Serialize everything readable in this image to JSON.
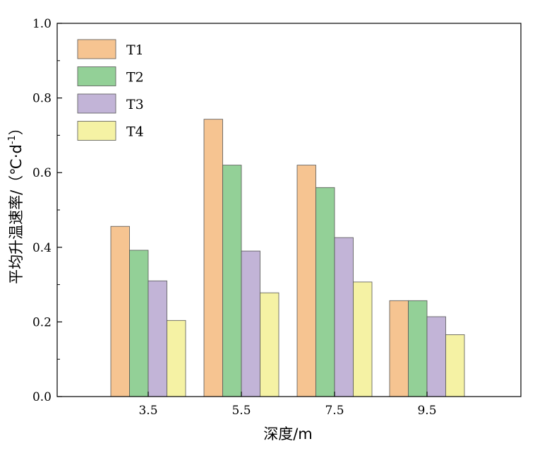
{
  "chart_data": {
    "type": "bar",
    "title": "",
    "xlabel": "深度/m",
    "ylabel": "平均升温速率/（℃·d",
    "ylabel_sup": "-1",
    "ylabel_end": "）",
    "categories": [
      "3.5",
      "5.5",
      "7.5",
      "9.5"
    ],
    "ylim": [
      0,
      1.0
    ],
    "yticks": [
      "0.0",
      "0.2",
      "0.4",
      "0.6",
      "0.8",
      "1.0"
    ],
    "legend_position": "top-left",
    "grid": false,
    "series": [
      {
        "name": "T1",
        "color": "#F6C491",
        "values": [
          0.456,
          0.743,
          0.62,
          0.257
        ]
      },
      {
        "name": "T2",
        "color": "#93D097",
        "values": [
          0.392,
          0.62,
          0.56,
          0.257
        ]
      },
      {
        "name": "T3",
        "color": "#C2B4D7",
        "values": [
          0.31,
          0.39,
          0.426,
          0.214
        ]
      },
      {
        "name": "T4",
        "color": "#F5F2A4",
        "values": [
          0.204,
          0.278,
          0.307,
          0.166
        ]
      }
    ]
  }
}
